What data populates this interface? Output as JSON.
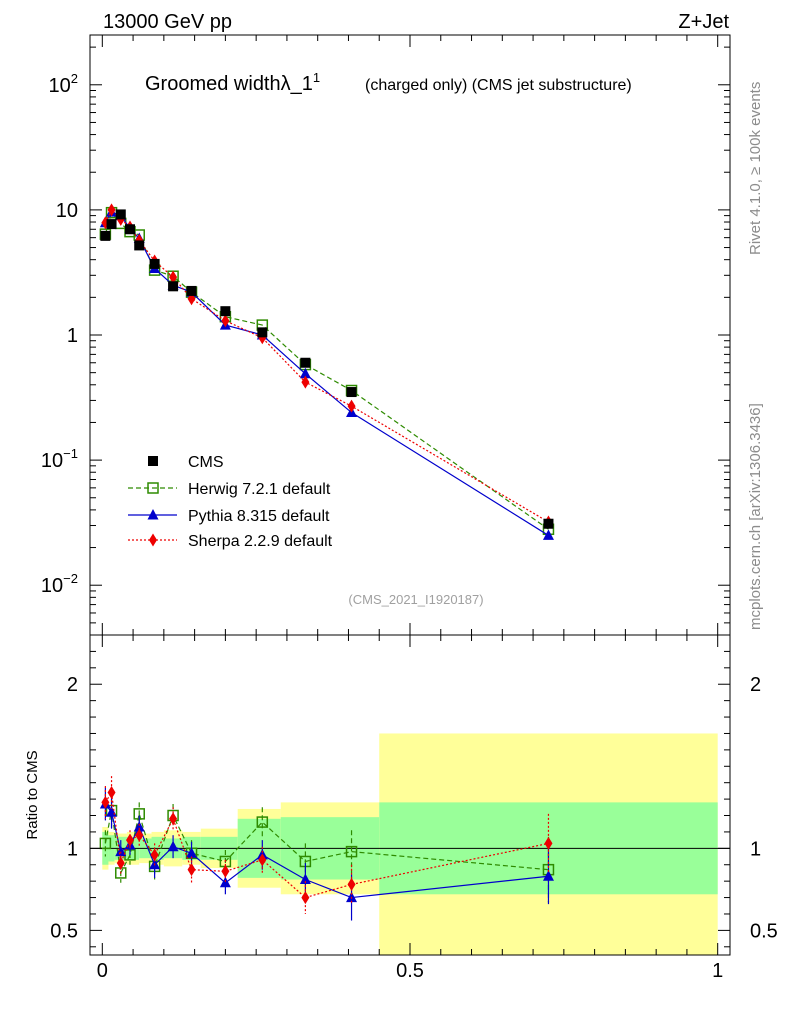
{
  "header": {
    "energy": "13000 GeV pp",
    "process": "Z+Jet"
  },
  "side_labels": {
    "rivet": "Rivet 4.1.0, ≥ 100k events",
    "mcplots": "mcplots.cern.ch [arXiv:1306.3436]"
  },
  "chart_data": {
    "type": "line",
    "title": "Groomed widthλ_1",
    "title_superscript": "1",
    "title_suffix": "(charged only) (CMS jet substructure)",
    "analysis_id": "(CMS_2021_I1920187)",
    "main_panel": {
      "yscale": "log",
      "ylim": [
        0.004,
        250
      ],
      "xlim": [
        -0.02,
        1.02
      ],
      "yticks": [
        {
          "value": 0.01,
          "base": "10",
          "exp": "−2"
        },
        {
          "value": 0.1,
          "base": "10",
          "exp": "−1"
        },
        {
          "value": 1,
          "base": "1",
          "exp": ""
        },
        {
          "value": 10,
          "base": "10",
          "exp": ""
        },
        {
          "value": 100,
          "base": "10",
          "exp": "2"
        }
      ]
    },
    "ratio_panel": {
      "ylabel": "Ratio to CMS",
      "ylim": [
        0.35,
        2.3
      ],
      "yticks": [
        {
          "value": 0.5,
          "label": "0.5"
        },
        {
          "value": 1,
          "label": "1"
        },
        {
          "value": 2,
          "label": "2"
        }
      ],
      "xticks": [
        {
          "value": 0,
          "label": "0"
        },
        {
          "value": 0.5,
          "label": "0.5"
        },
        {
          "value": 1,
          "label": "1"
        }
      ],
      "bands": [
        {
          "x0": 0.0,
          "x1": 0.01,
          "inner": [
            0.9,
            1.1
          ],
          "outer": [
            0.87,
            1.13
          ]
        },
        {
          "x0": 0.01,
          "x1": 0.02,
          "inner": [
            0.92,
            1.08
          ],
          "outer": [
            0.9,
            1.1
          ]
        },
        {
          "x0": 0.02,
          "x1": 0.04,
          "inner": [
            0.93,
            1.07
          ],
          "outer": [
            0.91,
            1.09
          ]
        },
        {
          "x0": 0.04,
          "x1": 0.06,
          "inner": [
            0.93,
            1.07
          ],
          "outer": [
            0.9,
            1.1
          ]
        },
        {
          "x0": 0.06,
          "x1": 0.08,
          "inner": [
            0.94,
            1.06
          ],
          "outer": [
            0.91,
            1.09
          ]
        },
        {
          "x0": 0.08,
          "x1": 0.1,
          "inner": [
            0.93,
            1.07
          ],
          "outer": [
            0.9,
            1.1
          ]
        },
        {
          "x0": 0.1,
          "x1": 0.13,
          "inner": [
            0.94,
            1.06
          ],
          "outer": [
            0.89,
            1.11
          ]
        },
        {
          "x0": 0.13,
          "x1": 0.16,
          "inner": [
            0.93,
            1.07
          ],
          "outer": [
            0.9,
            1.1
          ]
        },
        {
          "x0": 0.16,
          "x1": 0.22,
          "inner": [
            0.93,
            1.07
          ],
          "outer": [
            0.88,
            1.12
          ]
        },
        {
          "x0": 0.22,
          "x1": 0.29,
          "inner": [
            0.82,
            1.18
          ],
          "outer": [
            0.76,
            1.24
          ]
        },
        {
          "x0": 0.29,
          "x1": 0.45,
          "inner": [
            0.81,
            1.19
          ],
          "outer": [
            0.72,
            1.28
          ]
        },
        {
          "x0": 0.45,
          "x1": 1.0,
          "inner": [
            0.72,
            1.28
          ],
          "outer": [
            0.28,
            1.7
          ]
        }
      ]
    },
    "series": [
      {
        "name": "CMS",
        "label": "CMS",
        "color": "#000000",
        "marker": "square-filled",
        "line": "none",
        "x": [
          0.005,
          0.015,
          0.03,
          0.045,
          0.06,
          0.085,
          0.115,
          0.145,
          0.2,
          0.26,
          0.33,
          0.405,
          0.725
        ],
        "y": [
          6.2,
          7.7,
          9.2,
          7.0,
          5.2,
          3.7,
          2.45,
          2.25,
          1.55,
          1.05,
          0.6,
          0.35,
          0.031
        ],
        "ratio": [
          1,
          1,
          1,
          1,
          1,
          1,
          1,
          1,
          1,
          1,
          1,
          1,
          1
        ]
      },
      {
        "name": "Herwig",
        "label": "Herwig 7.2.1 default",
        "color": "#2e8b00",
        "marker": "square-open",
        "line": "dashed",
        "x": [
          0.005,
          0.015,
          0.03,
          0.045,
          0.06,
          0.085,
          0.115,
          0.145,
          0.2,
          0.26,
          0.33,
          0.405,
          0.725
        ],
        "y": [
          6.4,
          9.5,
          7.8,
          6.7,
          6.3,
          3.3,
          2.95,
          2.2,
          1.4,
          1.2,
          0.58,
          0.36,
          0.028
        ],
        "ratio": [
          1.03,
          1.23,
          0.85,
          0.96,
          1.21,
          0.89,
          1.2,
          0.97,
          0.92,
          1.16,
          0.92,
          0.98,
          0.87
        ],
        "ratio_err": [
          0.08,
          0.12,
          0.06,
          0.06,
          0.07,
          0.08,
          0.07,
          0.08,
          0.07,
          0.09,
          0.11,
          0.13,
          0.2
        ]
      },
      {
        "name": "Pythia",
        "label": "Pythia 8.315 default",
        "color": "#0000cc",
        "marker": "triangle-filled",
        "line": "solid",
        "x": [
          0.005,
          0.015,
          0.03,
          0.045,
          0.06,
          0.085,
          0.115,
          0.145,
          0.2,
          0.26,
          0.33,
          0.405,
          0.725
        ],
        "y": [
          7.9,
          9.6,
          9.0,
          7.1,
          5.9,
          3.4,
          2.5,
          2.2,
          1.2,
          1.0,
          0.49,
          0.24,
          0.025
        ],
        "ratio": [
          1.27,
          1.22,
          0.98,
          1.02,
          1.13,
          0.9,
          1.01,
          0.97,
          0.79,
          0.96,
          0.81,
          0.7,
          0.83
        ],
        "ratio_err": [
          0.1,
          0.1,
          0.07,
          0.06,
          0.07,
          0.08,
          0.07,
          0.07,
          0.07,
          0.09,
          0.1,
          0.14,
          0.17
        ]
      },
      {
        "name": "Sherpa",
        "label": "Sherpa 2.2.9 default",
        "color": "#ee0000",
        "marker": "diamond-filled",
        "line": "dotted",
        "x": [
          0.005,
          0.015,
          0.03,
          0.045,
          0.06,
          0.085,
          0.115,
          0.145,
          0.2,
          0.26,
          0.33,
          0.405,
          0.725
        ],
        "y": [
          7.9,
          10.0,
          8.4,
          7.3,
          5.7,
          3.9,
          2.9,
          1.95,
          1.3,
          0.95,
          0.42,
          0.27,
          0.032
        ],
        "ratio": [
          1.28,
          1.34,
          0.91,
          1.05,
          1.08,
          0.96,
          1.18,
          0.87,
          0.86,
          0.93,
          0.7,
          0.78,
          1.03
        ],
        "ratio_err": [
          0.1,
          0.1,
          0.07,
          0.06,
          0.07,
          0.07,
          0.07,
          0.08,
          0.07,
          0.08,
          0.1,
          0.12,
          0.18
        ]
      }
    ]
  }
}
